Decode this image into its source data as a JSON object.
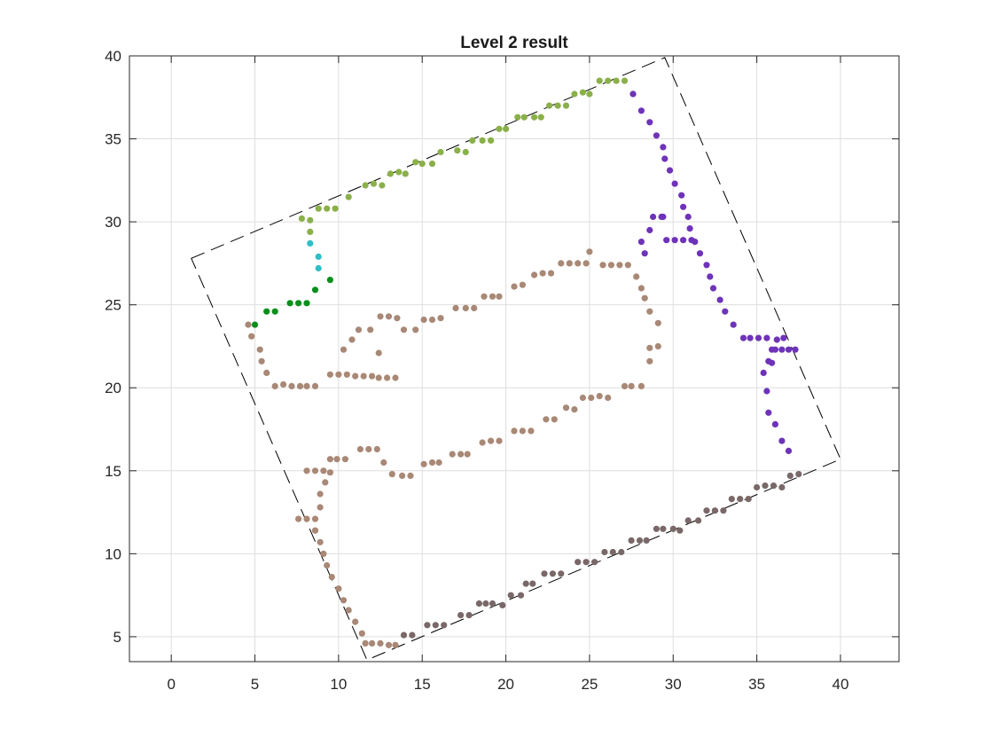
{
  "chart_data": {
    "type": "scatter",
    "title": "Level 2 result",
    "xlabel": "",
    "ylabel": "",
    "xlim": [
      -2.5,
      43.5
    ],
    "ylim": [
      3.5,
      40
    ],
    "xticks": [
      0,
      5,
      10,
      15,
      20,
      25,
      30,
      35,
      40
    ],
    "yticks": [
      5,
      10,
      15,
      20,
      25,
      30,
      35,
      40
    ],
    "grid": true,
    "boundary": {
      "style": "dashed",
      "color": "#000000",
      "vertices": [
        [
          1.2,
          27.8
        ],
        [
          29.5,
          39.9
        ],
        [
          40.0,
          15.7
        ],
        [
          11.7,
          3.6
        ]
      ]
    },
    "series": [
      {
        "color": "#8ab04a",
        "x": [
          7.8,
          8.3,
          8.3,
          8.8,
          9.3,
          9.8,
          10.6,
          11.6,
          12.1,
          12.6,
          13.1,
          13.6,
          14.0,
          14.6,
          15.0,
          15.6,
          16.1,
          17.1,
          17.6,
          18.0,
          18.6,
          19.1,
          19.6,
          20.0,
          20.7,
          21.1,
          21.7,
          22.1,
          22.6,
          23.1,
          23.6,
          24.1,
          24.6,
          25.0,
          25.6,
          26.1,
          26.6,
          27.1,
          27.6
        ],
        "y": [
          30.2,
          30.1,
          29.4,
          30.8,
          30.8,
          30.8,
          31.5,
          32.2,
          32.3,
          32.2,
          32.9,
          33.0,
          32.9,
          33.6,
          33.5,
          33.5,
          34.2,
          34.3,
          34.2,
          34.9,
          34.9,
          34.9,
          35.6,
          35.6,
          36.3,
          36.3,
          36.3,
          36.3,
          37.0,
          37.0,
          37.0,
          37.7,
          37.8,
          37.7,
          38.5,
          38.5,
          38.5,
          38.5,
          37.7
        ]
      },
      {
        "color": "#2fbfc6",
        "x": [
          8.3,
          8.8,
          8.8
        ],
        "y": [
          28.7,
          27.9,
          27.2
        ]
      },
      {
        "color": "#0a8f1c",
        "x": [
          5.0,
          5.7,
          6.2,
          7.1,
          7.6,
          8.1,
          8.6,
          9.5
        ],
        "y": [
          23.8,
          24.6,
          24.6,
          25.1,
          25.1,
          25.1,
          25.9,
          26.5
        ]
      },
      {
        "color": "#6e33b8",
        "x": [
          27.6,
          28.1,
          28.6,
          29.0,
          29.4,
          29.5,
          29.8,
          30.1,
          30.5,
          30.6,
          30.9,
          31.0,
          31.3,
          31.6,
          32.0,
          32.2,
          32.4,
          32.8,
          33.1,
          33.6,
          34.2,
          34.6,
          35.1,
          35.6,
          35.9,
          36.1,
          36.5,
          36.9,
          37.3,
          36.6,
          36.2,
          35.9,
          35.7,
          35.4,
          35.6,
          35.7,
          36.1,
          36.5,
          36.9,
          31.1,
          30.6,
          30.1,
          29.6,
          29.4,
          29.3,
          28.8,
          28.6,
          28.3,
          28.1
        ],
        "y": [
          37.7,
          36.7,
          36.0,
          35.2,
          34.5,
          33.8,
          33.1,
          32.3,
          31.6,
          30.9,
          30.3,
          29.6,
          28.8,
          28.1,
          27.4,
          26.7,
          26.0,
          25.3,
          24.6,
          23.8,
          23.0,
          23.0,
          23.0,
          23.0,
          22.3,
          22.3,
          22.3,
          22.3,
          22.3,
          23.0,
          22.9,
          21.5,
          21.6,
          20.9,
          19.8,
          18.5,
          17.8,
          16.8,
          16.2,
          28.9,
          28.9,
          28.9,
          28.9,
          30.3,
          30.3,
          30.3,
          29.5,
          28.1,
          28.8
        ]
      },
      {
        "color": "#a88876",
        "x": [
          4.6,
          4.8,
          5.3,
          5.4,
          5.7,
          6.2,
          6.7,
          7.2,
          7.7,
          8.1,
          8.6,
          9.5,
          10.0,
          10.5,
          11.0,
          11.5,
          12.0,
          12.4,
          12.9,
          13.4,
          12.4,
          11.9,
          11.2,
          10.8,
          10.3,
          12.5,
          13.0,
          13.5,
          13.9,
          14.6,
          15.1,
          15.6,
          16.1,
          17.0,
          17.6,
          18.1,
          18.7,
          19.2,
          19.6,
          20.5,
          21.0,
          21.7,
          22.2,
          22.7,
          23.3,
          23.8,
          24.3,
          24.8,
          25.0,
          25.8,
          26.3,
          26.8,
          27.3,
          27.8,
          28.1,
          28.3,
          28.6,
          29.1,
          29.1,
          28.6,
          28.6,
          28.1,
          27.5,
          27.1,
          26.1,
          25.6,
          25.1,
          24.6,
          24.1,
          23.6,
          22.9,
          22.4,
          21.5,
          21.0,
          20.5,
          19.6,
          19.1,
          18.6,
          17.7,
          17.3,
          16.8,
          16.0,
          15.6,
          15.1,
          14.3,
          13.8,
          13.2,
          12.7,
          12.3,
          11.8,
          11.3,
          10.4,
          9.9,
          9.5,
          9.1,
          8.6,
          8.1,
          7.6,
          8.1,
          8.6,
          8.9,
          8.9,
          9.2,
          9.5,
          8.6,
          8.6,
          8.9,
          9.1,
          9.3,
          9.6,
          10.0,
          10.3,
          10.6,
          11.0,
          11.4,
          11.6,
          12.0,
          12.5,
          13.0,
          13.4
        ],
        "y": [
          23.8,
          23.1,
          22.3,
          21.6,
          20.9,
          20.1,
          20.2,
          20.1,
          20.1,
          20.1,
          20.1,
          20.8,
          20.8,
          20.8,
          20.7,
          20.7,
          20.7,
          20.6,
          20.6,
          20.6,
          22.1,
          23.5,
          23.5,
          22.9,
          22.3,
          24.3,
          24.3,
          24.2,
          23.5,
          23.5,
          24.1,
          24.1,
          24.2,
          24.8,
          24.8,
          24.8,
          25.5,
          25.5,
          25.5,
          26.1,
          26.2,
          26.8,
          26.9,
          26.9,
          27.5,
          27.5,
          27.5,
          27.5,
          28.2,
          27.4,
          27.4,
          27.4,
          27.4,
          26.7,
          26.0,
          25.4,
          24.6,
          23.9,
          22.5,
          22.4,
          21.6,
          20.1,
          20.1,
          20.1,
          19.4,
          19.5,
          19.4,
          19.4,
          18.7,
          18.8,
          18.1,
          18.1,
          17.4,
          17.4,
          17.4,
          16.8,
          16.8,
          16.7,
          16.0,
          16.0,
          16.0,
          15.5,
          15.5,
          15.4,
          14.7,
          14.7,
          14.8,
          15.5,
          16.3,
          16.3,
          16.3,
          15.7,
          15.7,
          15.7,
          15.0,
          15.0,
          15.0,
          12.1,
          12.1,
          12.1,
          12.8,
          13.6,
          14.3,
          14.9,
          11.4,
          11.4,
          10.7,
          10.0,
          9.3,
          8.6,
          7.9,
          7.2,
          6.6,
          5.9,
          5.2,
          4.6,
          4.6,
          4.6,
          4.5,
          4.5
        ]
      },
      {
        "color": "#7a6868",
        "x": [
          13.9,
          14.4,
          15.3,
          15.8,
          16.3,
          17.3,
          17.8,
          18.4,
          18.8,
          19.2,
          19.8,
          20.3,
          20.9,
          21.2,
          21.6,
          22.3,
          22.8,
          23.3,
          24.3,
          24.8,
          25.3,
          25.9,
          26.4,
          26.9,
          27.5,
          28.0,
          28.4,
          29.0,
          29.4,
          30.0,
          30.4,
          30.9,
          31.5,
          32.0,
          32.5,
          33.0,
          33.5,
          34.0,
          34.5,
          35.0,
          35.5,
          36.0,
          36.5,
          37.0,
          37.5
        ],
        "y": [
          5.1,
          5.1,
          5.7,
          5.7,
          5.7,
          6.3,
          6.3,
          7.0,
          7.0,
          7.0,
          6.9,
          7.5,
          7.5,
          8.2,
          8.2,
          8.8,
          8.8,
          8.8,
          9.5,
          9.5,
          9.5,
          10.1,
          10.1,
          10.1,
          10.8,
          10.8,
          10.8,
          11.5,
          11.5,
          11.5,
          11.4,
          12.0,
          12.0,
          12.6,
          12.6,
          12.6,
          13.3,
          13.3,
          13.3,
          14.0,
          14.1,
          14.1,
          14.0,
          14.7,
          14.8
        ]
      }
    ]
  }
}
